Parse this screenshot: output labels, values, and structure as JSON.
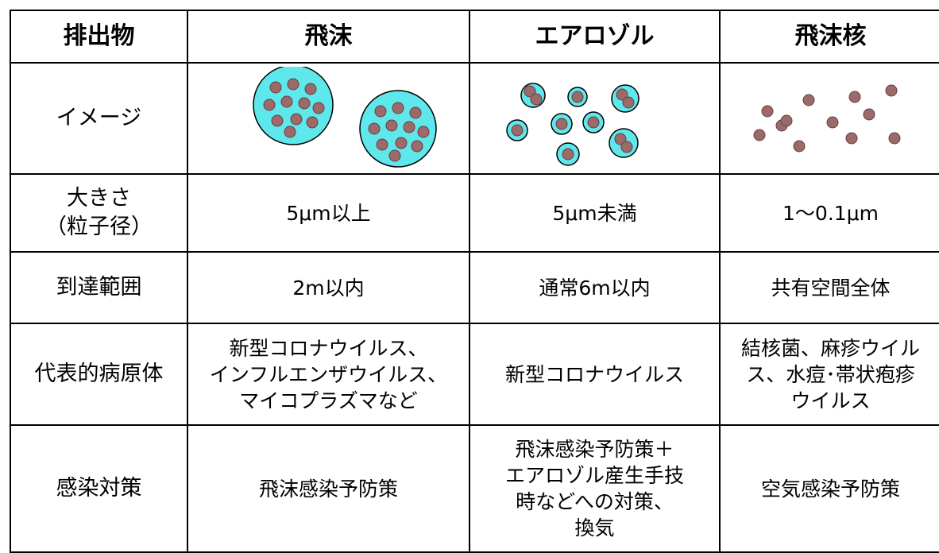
{
  "table": {
    "header": [
      "排出物",
      "飛沫",
      "エアロゾル",
      "飛沫核"
    ],
    "rows": [
      {
        "label": [
          "イメージ"
        ]
      },
      {
        "label": [
          "大きさ",
          "（粒子径）"
        ],
        "cells": [
          [
            "5μm以上"
          ],
          [
            "5μm未満"
          ],
          [
            "1〜0.1μm"
          ]
        ]
      },
      {
        "label": [
          "到達範囲"
        ],
        "cells": [
          [
            "2m以内"
          ],
          [
            "通常6m以内"
          ],
          [
            "共有空間全体"
          ]
        ]
      },
      {
        "label": [
          "代表的病原体"
        ],
        "cells": [
          [
            "新型コロナウイルス、",
            "インフルエンザウイルス、",
            "マイコプラズマなど"
          ],
          [
            "新型コロナウイルス"
          ],
          [
            "結核菌、麻疹ウイル",
            "ス、水痘･帯状疱疹",
            "ウイルス"
          ]
        ]
      },
      {
        "label": [
          "感染対策"
        ],
        "cells": [
          [
            "飛沫感染予防策"
          ],
          [
            "飛沫感染予防策＋",
            "エアロゾル産生手技",
            "時などへの対策、",
            "換気"
          ],
          [
            "空気感染予防策"
          ]
        ]
      }
    ]
  }
}
